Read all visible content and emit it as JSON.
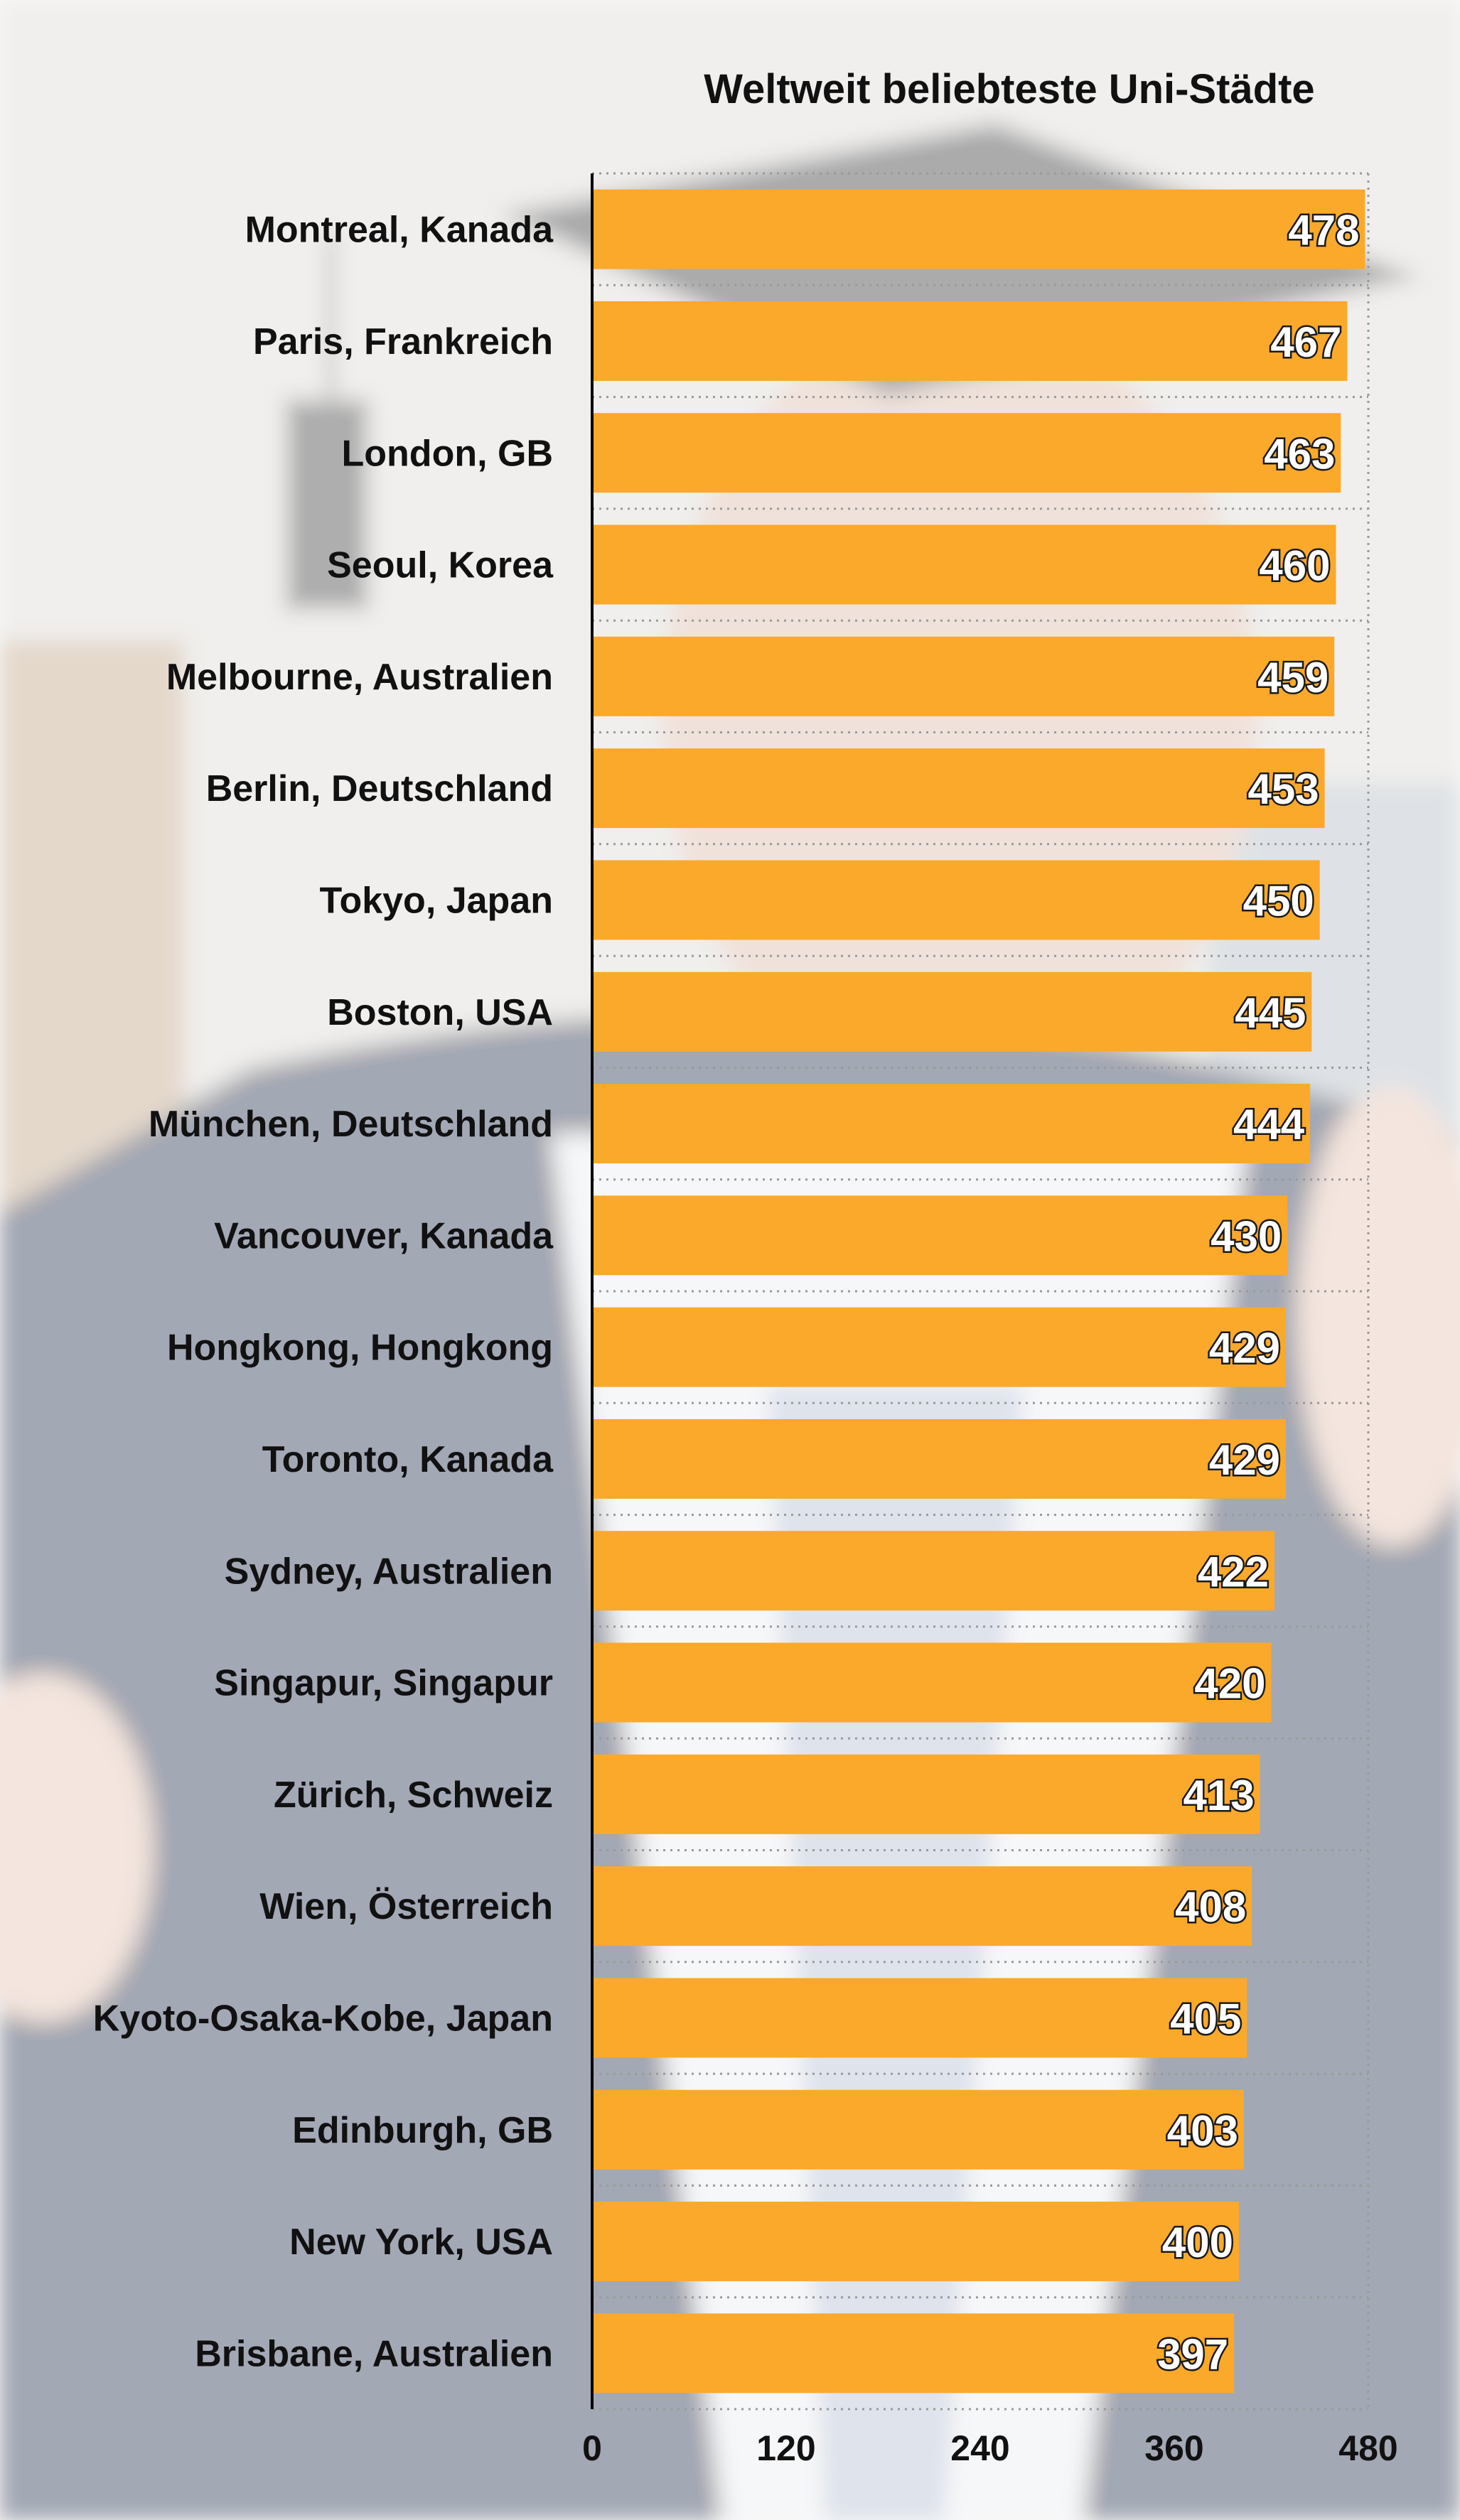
{
  "chart_data": {
    "type": "bar",
    "orientation": "horizontal",
    "title": "Weltweit beliebteste Uni-Städte",
    "xlabel": "",
    "ylabel": "",
    "categories": [
      "Montreal, Kanada",
      "Paris, Frankreich",
      "London, GB",
      "Seoul, Korea",
      "Melbourne, Australien",
      "Berlin, Deutschland",
      "Tokyo, Japan",
      "Boston, USA",
      "München, Deutschland",
      "Vancouver, Kanada",
      "Hongkong, Hongkong",
      "Toronto, Kanada",
      "Sydney, Australien",
      "Singapur, Singapur",
      "Zürich, Schweiz",
      "Wien, Österreich",
      "Kyoto-Osaka-Kobe, Japan",
      "Edinburgh, GB",
      "New York, USA",
      "Brisbane, Australien"
    ],
    "values": [
      478,
      467,
      463,
      460,
      459,
      453,
      450,
      445,
      444,
      430,
      429,
      429,
      422,
      420,
      413,
      408,
      405,
      403,
      400,
      397
    ],
    "xlim": [
      0,
      480
    ],
    "xticks": [
      0,
      120,
      240,
      360,
      480
    ],
    "grid": true,
    "bar_color": "#fba92b",
    "value_label_color": "#ffffff"
  }
}
